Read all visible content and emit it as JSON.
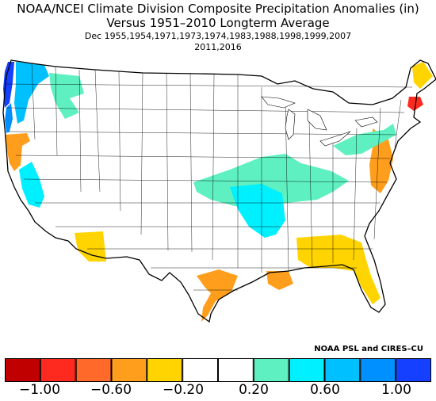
{
  "title": {
    "line1": "NOAA/NCEI Climate Division Composite Precipitation Anomalies (in)",
    "line2": "Versus 1951–2010 Longterm Average",
    "line3": "Dec   1955,1954,1971,1973,1974,1983,1988,1998,1999,2007",
    "line4": "2011,2016"
  },
  "credit": "NOAA PSL and CIRES–CU",
  "legend": {
    "colors": [
      "#c00000",
      "#ff2a1f",
      "#ff6a2a",
      "#ff9e1c",
      "#ffd400",
      "#ffffff",
      "#ffffff",
      "#5ef0c0",
      "#00f0ff",
      "#00c0ff",
      "#0090ff",
      "#1540ff"
    ],
    "labels": [
      "−1.00",
      "−0.60",
      "−0.20",
      "0.20",
      "0.60",
      "1.00"
    ]
  },
  "chart_data": {
    "type": "heatmap",
    "units": "in",
    "scale_bins": [
      {
        "range": [
          -1.2,
          -1.0
        ],
        "color": "#c00000"
      },
      {
        "range": [
          -1.0,
          -0.8
        ],
        "color": "#ff2a1f"
      },
      {
        "range": [
          -0.8,
          -0.6
        ],
        "color": "#ff6a2a"
      },
      {
        "range": [
          -0.6,
          -0.4
        ],
        "color": "#ff9e1c"
      },
      {
        "range": [
          -0.4,
          -0.2
        ],
        "color": "#ffd400"
      },
      {
        "range": [
          -0.2,
          0.0
        ],
        "color": "#ffffff"
      },
      {
        "range": [
          0.0,
          0.2
        ],
        "color": "#ffffff"
      },
      {
        "range": [
          0.2,
          0.4
        ],
        "color": "#5ef0c0"
      },
      {
        "range": [
          0.4,
          0.6
        ],
        "color": "#00f0ff"
      },
      {
        "range": [
          0.6,
          0.8
        ],
        "color": "#00c0ff"
      },
      {
        "range": [
          0.8,
          1.0
        ],
        "color": "#0090ff"
      },
      {
        "range": [
          1.0,
          1.2
        ],
        "color": "#1540ff"
      }
    ],
    "regions": [
      {
        "name": "Washington coast",
        "anomaly_bin": [
          1.0,
          1.2
        ]
      },
      {
        "name": "Oregon coast",
        "anomaly_bin": [
          0.8,
          1.0
        ]
      },
      {
        "name": "Western Washington / Oregon interior",
        "anomaly_bin": [
          0.6,
          0.8
        ]
      },
      {
        "name": "Northern California coast",
        "anomaly_bin": [
          -0.6,
          -0.4
        ]
      },
      {
        "name": "Central California",
        "anomaly_bin": [
          0.4,
          0.6
        ]
      },
      {
        "name": "Idaho / Montana / Wyoming",
        "anomaly_bin": [
          0.2,
          0.4
        ]
      },
      {
        "name": "Mid-Mississippi & Ohio Valley",
        "anomaly_bin": [
          0.2,
          0.6
        ]
      },
      {
        "name": "Lower Mississippi (Arkansas / Mississippi)",
        "anomaly_bin": [
          0.4,
          0.8
        ]
      },
      {
        "name": "Southern Arizona",
        "anomaly_bin": [
          -0.4,
          -0.2
        ]
      },
      {
        "name": "Texas Gulf coast",
        "anomaly_bin": [
          -0.6,
          -0.2
        ]
      },
      {
        "name": "Louisiana coast",
        "anomaly_bin": [
          -0.6,
          -0.4
        ]
      },
      {
        "name": "Gulf states / Florida",
        "anomaly_bin": [
          -0.4,
          -0.2
        ]
      },
      {
        "name": "Mid-Atlantic coast",
        "anomaly_bin": [
          -0.6,
          -0.2
        ]
      },
      {
        "name": "Maine",
        "anomaly_bin": [
          -0.4,
          -0.2
        ]
      },
      {
        "name": "Massachusetts / Rhode Island",
        "anomaly_bin": [
          -1.0,
          -0.8
        ]
      },
      {
        "name": "Great Lakes / New England interior",
        "anomaly_bin": [
          0.2,
          0.4
        ]
      }
    ]
  }
}
